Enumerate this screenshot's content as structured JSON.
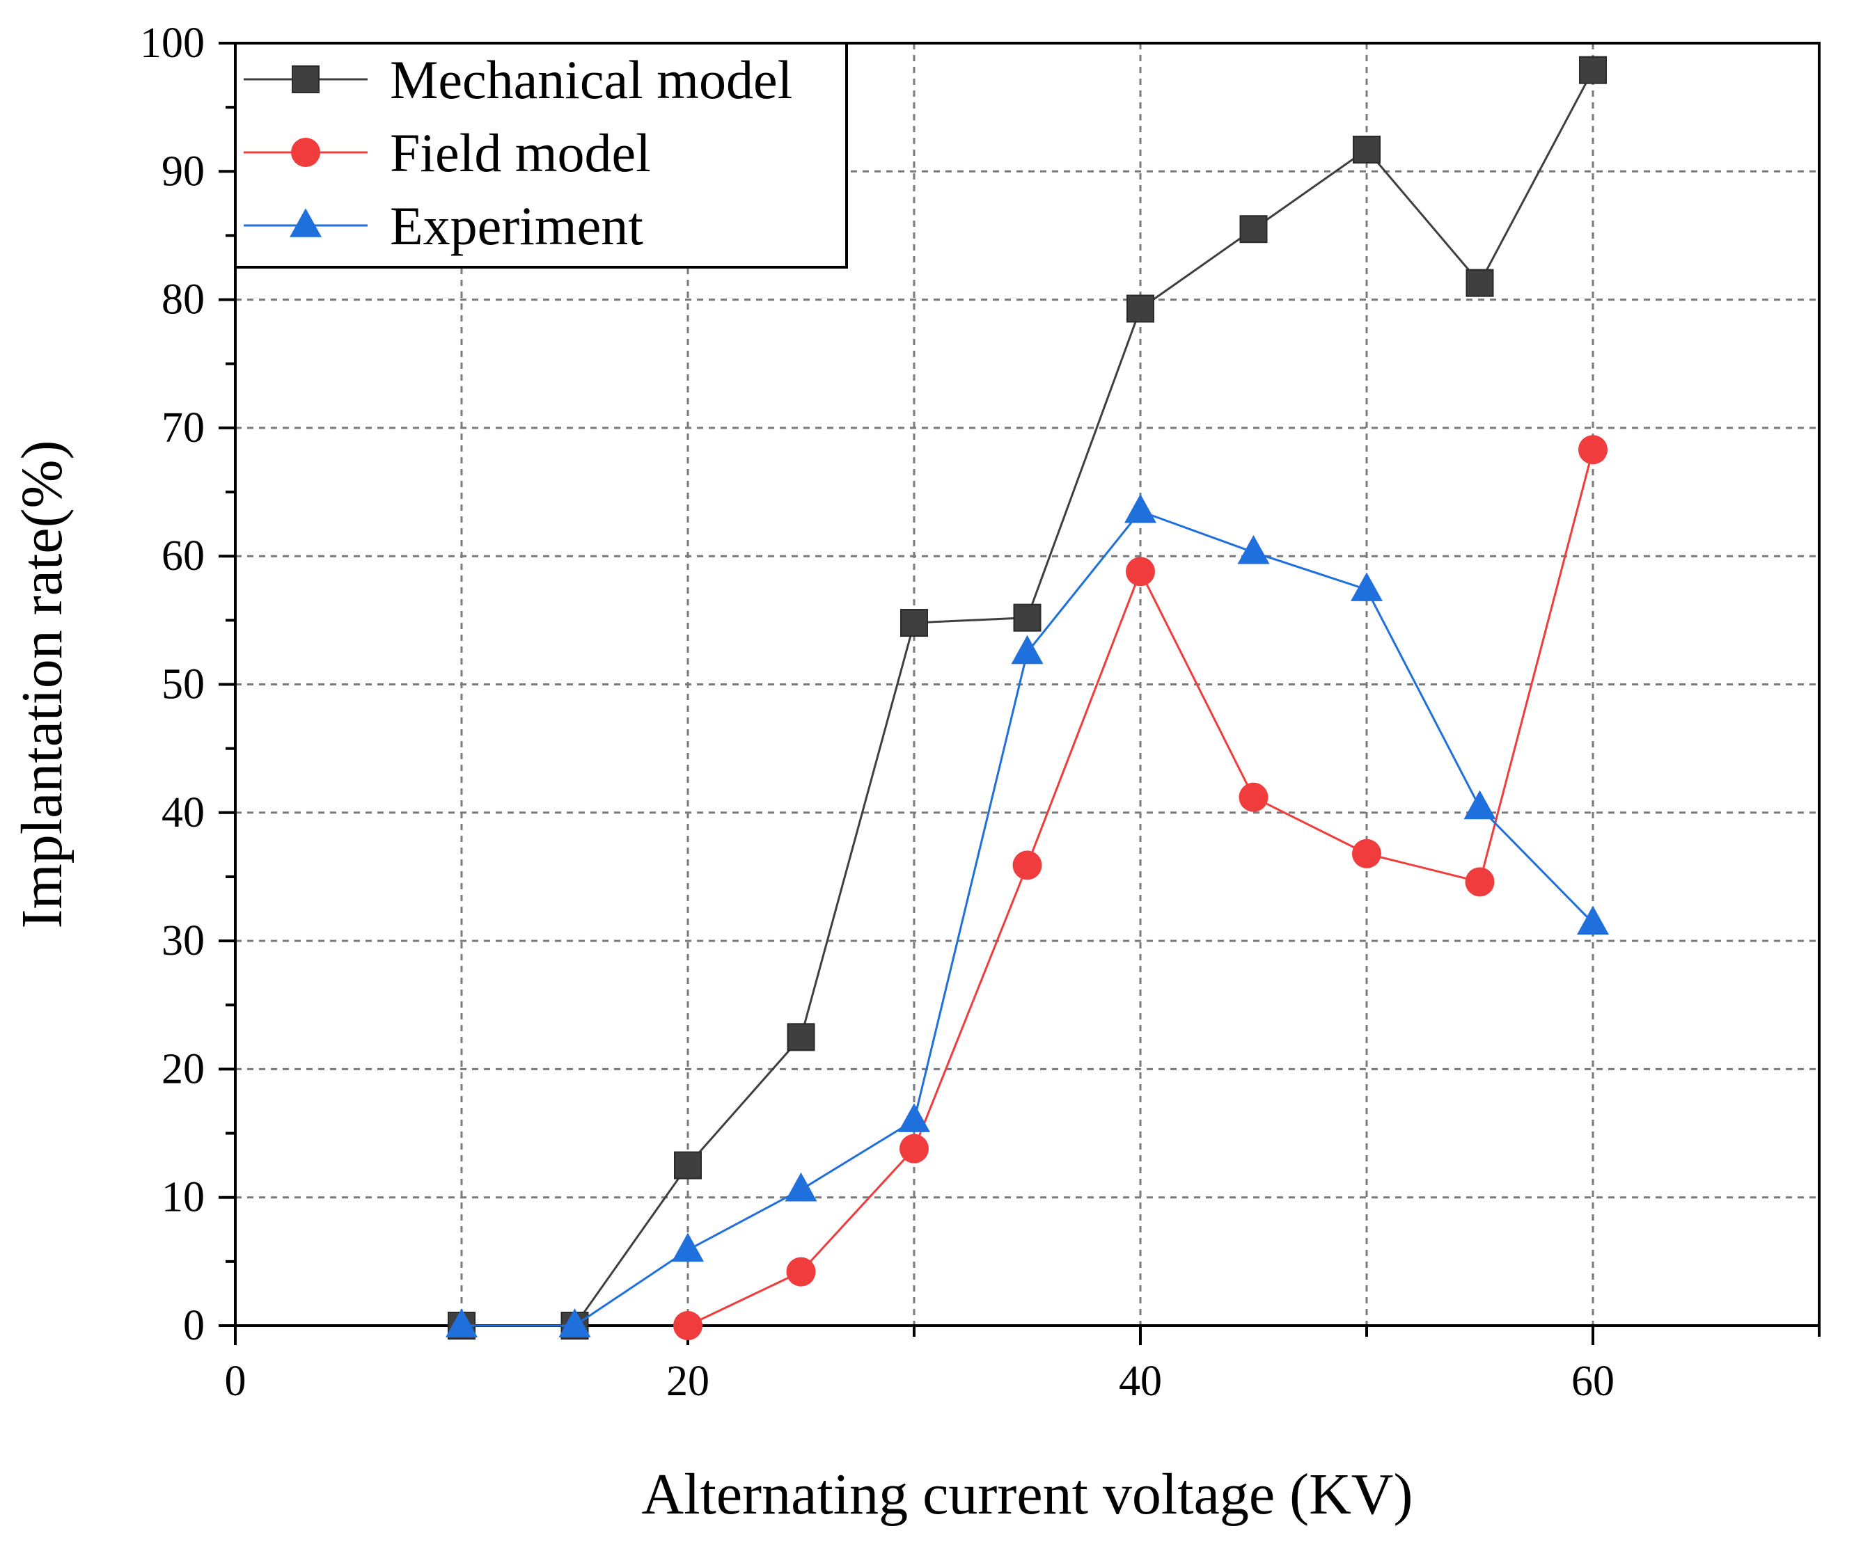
{
  "chart_data": {
    "type": "line",
    "title": "",
    "xlabel": "Alternating current voltage (KV)",
    "ylabel": "Implantation rate(%)",
    "xlim": [
      0,
      70
    ],
    "ylim": [
      0,
      100
    ],
    "xticks": [
      0,
      20,
      40,
      60
    ],
    "yticks": [
      0,
      10,
      20,
      30,
      40,
      50,
      60,
      70,
      80,
      90,
      100
    ],
    "grid": true,
    "legend_position": "top-left",
    "series": [
      {
        "name": "Mechanical model",
        "color": "#3f3f3f",
        "marker": "square",
        "x": [
          10,
          15,
          20,
          25,
          30,
          35,
          40,
          45,
          50,
          55,
          60
        ],
        "y": [
          0,
          0,
          12.5,
          22.5,
          54.8,
          55.2,
          79.3,
          85.5,
          91.7,
          81.3,
          97.9
        ]
      },
      {
        "name": "Field model",
        "color": "#f03c3c",
        "marker": "circle",
        "x": [
          20,
          25,
          30,
          35,
          40,
          45,
          50,
          55,
          60
        ],
        "y": [
          0,
          4.2,
          13.8,
          35.9,
          58.8,
          41.2,
          36.8,
          34.6,
          68.3
        ]
      },
      {
        "name": "Experiment",
        "color": "#1f6fdc",
        "marker": "triangle",
        "x": [
          10,
          15,
          20,
          25,
          30,
          35,
          40,
          45,
          50,
          55,
          60
        ],
        "y": [
          0,
          0,
          5.9,
          10.6,
          16.0,
          52.5,
          63.5,
          60.3,
          57.4,
          40.4,
          31.4
        ]
      }
    ]
  }
}
